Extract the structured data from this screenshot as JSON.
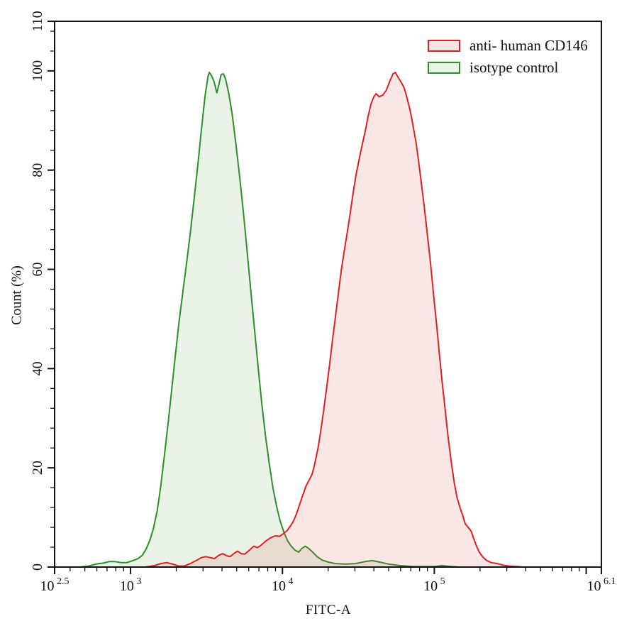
{
  "figure": {
    "background": "#ffffff",
    "frame_color": "#111111"
  },
  "chart_data": {
    "type": "area",
    "subtype": "flow-cytometry-histogram-overlay",
    "title": "",
    "xlabel": "FITC-A",
    "ylabel": "Count (%)",
    "x_scale": "log10",
    "xlim_log10": [
      2.5,
      6.1
    ],
    "ylim": [
      0,
      110
    ],
    "grid": "off",
    "x_major_ticks": [
      {
        "log10": 2.5,
        "mantissa": "10",
        "exponent": "2.5"
      },
      {
        "log10": 3,
        "mantissa": "10",
        "exponent": "3"
      },
      {
        "log10": 4,
        "mantissa": "10",
        "exponent": "4"
      },
      {
        "log10": 5,
        "mantissa": "10",
        "exponent": "5"
      },
      {
        "log10": 6,
        "mantissa": "",
        "exponent": ""
      },
      {
        "log10": 6.1,
        "mantissa": "10",
        "exponent": "6.1"
      }
    ],
    "y_major_ticks": [
      0,
      20,
      40,
      60,
      80,
      100,
      110
    ],
    "y_minor_step": 4,
    "legend": {
      "position": "top-right",
      "items": [
        {
          "label": "anti- human CD146",
          "stroke": "#e02020",
          "fill": "#fbe6e6"
        },
        {
          "label": "isotype control",
          "stroke": "#2c8f2c",
          "fill": "#eaf4e6"
        }
      ]
    },
    "series": [
      {
        "name": "isotype control",
        "stroke": "#2c8f2c",
        "fill": "rgba(100,170,80,0.14)",
        "peak_x": 3300,
        "peak_y": 100,
        "points": [
          [
            2.665,
            0
          ],
          [
            2.723,
            0.2
          ],
          [
            2.772,
            0.6
          ],
          [
            2.82,
            0.8
          ],
          [
            2.859,
            1.1
          ],
          [
            2.898,
            1.1
          ],
          [
            2.937,
            0.9
          ],
          [
            2.976,
            0.9
          ],
          [
            3.015,
            1.3
          ],
          [
            3.049,
            1.7
          ],
          [
            3.078,
            2.4
          ],
          [
            3.102,
            3.6
          ],
          [
            3.126,
            5.3
          ],
          [
            3.15,
            7.7
          ],
          [
            3.175,
            11.3
          ],
          [
            3.199,
            16.3
          ],
          [
            3.223,
            22.5
          ],
          [
            3.248,
            29.2
          ],
          [
            3.272,
            36
          ],
          [
            3.296,
            43
          ],
          [
            3.32,
            49.6
          ],
          [
            3.345,
            55.6
          ],
          [
            3.369,
            61.3
          ],
          [
            3.393,
            67.3
          ],
          [
            3.417,
            73.8
          ],
          [
            3.442,
            80.7
          ],
          [
            3.466,
            88
          ],
          [
            3.49,
            94.8
          ],
          [
            3.51,
            98.9
          ],
          [
            3.519,
            99.7
          ],
          [
            3.534,
            99
          ],
          [
            3.549,
            97.9
          ],
          [
            3.568,
            95.6
          ],
          [
            3.583,
            97.4
          ],
          [
            3.597,
            99.3
          ],
          [
            3.612,
            99.4
          ],
          [
            3.626,
            98.3
          ],
          [
            3.646,
            95.6
          ],
          [
            3.67,
            91.1
          ],
          [
            3.694,
            85.2
          ],
          [
            3.718,
            78.7
          ],
          [
            3.743,
            71.5
          ],
          [
            3.767,
            63.9
          ],
          [
            3.791,
            55.9
          ],
          [
            3.816,
            48
          ],
          [
            3.84,
            40.3
          ],
          [
            3.864,
            33
          ],
          [
            3.888,
            26.5
          ],
          [
            3.913,
            20.9
          ],
          [
            3.937,
            16
          ],
          [
            3.961,
            12.3
          ],
          [
            3.985,
            9.3
          ],
          [
            4.01,
            7
          ],
          [
            4.034,
            5.3
          ],
          [
            4.058,
            4.2
          ],
          [
            4.083,
            3.4
          ],
          [
            4.107,
            3
          ],
          [
            4.126,
            3.7
          ],
          [
            4.15,
            4.2
          ],
          [
            4.175,
            3.7
          ],
          [
            4.199,
            3
          ],
          [
            4.228,
            2.1
          ],
          [
            4.262,
            1.4
          ],
          [
            4.301,
            1
          ],
          [
            4.35,
            0.7
          ],
          [
            4.413,
            0.6
          ],
          [
            4.481,
            0.7
          ],
          [
            4.544,
            1.1
          ],
          [
            4.592,
            1.3
          ],
          [
            4.641,
            1
          ],
          [
            4.699,
            0.6
          ],
          [
            4.772,
            0.3
          ],
          [
            4.859,
            0.1
          ],
          [
            5.005,
            0.1
          ],
          [
            5.05,
            0.3
          ],
          [
            5.1,
            0.15
          ],
          [
            5.165,
            0
          ]
        ]
      },
      {
        "name": "anti- human CD146",
        "stroke": "#e02020",
        "fill": "rgba(235,70,70,0.13)",
        "peak_x": 55000,
        "peak_y": 100,
        "points": [
          [
            3.097,
            0
          ],
          [
            3.16,
            0.3
          ],
          [
            3.199,
            0.7
          ],
          [
            3.238,
            0.9
          ],
          [
            3.277,
            0.6
          ],
          [
            3.316,
            0.2
          ],
          [
            3.354,
            0.2
          ],
          [
            3.393,
            0.7
          ],
          [
            3.432,
            1.3
          ],
          [
            3.466,
            1.9
          ],
          [
            3.495,
            2.1
          ],
          [
            3.524,
            1.9
          ],
          [
            3.553,
            1.7
          ],
          [
            3.583,
            2.4
          ],
          [
            3.607,
            2.7
          ],
          [
            3.631,
            2.3
          ],
          [
            3.655,
            2.1
          ],
          [
            3.68,
            2.7
          ],
          [
            3.704,
            3.2
          ],
          [
            3.728,
            2.7
          ],
          [
            3.752,
            2.6
          ],
          [
            3.782,
            3.4
          ],
          [
            3.811,
            4.2
          ],
          [
            3.835,
            3.9
          ],
          [
            3.859,
            4.4
          ],
          [
            3.893,
            5.3
          ],
          [
            3.922,
            5.9
          ],
          [
            3.951,
            6.3
          ],
          [
            3.981,
            6.2
          ],
          [
            4.005,
            6.7
          ],
          [
            4.029,
            7.3
          ],
          [
            4.053,
            8.3
          ],
          [
            4.073,
            9.3
          ],
          [
            4.092,
            10.7
          ],
          [
            4.112,
            12.5
          ],
          [
            4.131,
            14.2
          ],
          [
            4.155,
            16.3
          ],
          [
            4.175,
            17.5
          ],
          [
            4.194,
            18.6
          ],
          [
            4.209,
            20.3
          ],
          [
            4.223,
            22.3
          ],
          [
            4.238,
            24.6
          ],
          [
            4.252,
            27.4
          ],
          [
            4.272,
            31.7
          ],
          [
            4.291,
            36.2
          ],
          [
            4.311,
            41
          ],
          [
            4.33,
            45.8
          ],
          [
            4.35,
            50.7
          ],
          [
            4.369,
            55.4
          ],
          [
            4.388,
            59.9
          ],
          [
            4.408,
            63.9
          ],
          [
            4.427,
            67.5
          ],
          [
            4.447,
            71.5
          ],
          [
            4.466,
            75.6
          ],
          [
            4.485,
            79.1
          ],
          [
            4.505,
            82.2
          ],
          [
            4.524,
            85
          ],
          [
            4.544,
            87.7
          ],
          [
            4.563,
            90.7
          ],
          [
            4.583,
            93.3
          ],
          [
            4.602,
            94.8
          ],
          [
            4.617,
            95.4
          ],
          [
            4.636,
            94.8
          ],
          [
            4.66,
            95.1
          ],
          [
            4.684,
            96.1
          ],
          [
            4.709,
            98.1
          ],
          [
            4.728,
            99.4
          ],
          [
            4.743,
            99.7
          ],
          [
            4.762,
            98.7
          ],
          [
            4.782,
            97.7
          ],
          [
            4.801,
            96.6
          ],
          [
            4.82,
            94.6
          ],
          [
            4.84,
            92.1
          ],
          [
            4.859,
            89.1
          ],
          [
            4.879,
            85.7
          ],
          [
            4.898,
            81.4
          ],
          [
            4.917,
            76.8
          ],
          [
            4.937,
            71.8
          ],
          [
            4.956,
            66.5
          ],
          [
            4.976,
            60.9
          ],
          [
            4.995,
            55
          ],
          [
            5.015,
            48.9
          ],
          [
            5.034,
            42.7
          ],
          [
            5.053,
            36.8
          ],
          [
            5.073,
            31.2
          ],
          [
            5.092,
            25.9
          ],
          [
            5.112,
            21.1
          ],
          [
            5.131,
            17
          ],
          [
            5.15,
            14
          ],
          [
            5.17,
            11.9
          ],
          [
            5.189,
            10.2
          ],
          [
            5.204,
            8.7
          ],
          [
            5.223,
            8
          ],
          [
            5.243,
            7.2
          ],
          [
            5.257,
            5.9
          ],
          [
            5.277,
            4.3
          ],
          [
            5.296,
            3
          ],
          [
            5.32,
            2
          ],
          [
            5.345,
            1.3
          ],
          [
            5.374,
            0.9
          ],
          [
            5.413,
            0.7
          ],
          [
            5.451,
            0.4
          ],
          [
            5.49,
            0.2
          ],
          [
            5.539,
            0.1
          ],
          [
            5.578,
            0
          ]
        ]
      }
    ]
  }
}
